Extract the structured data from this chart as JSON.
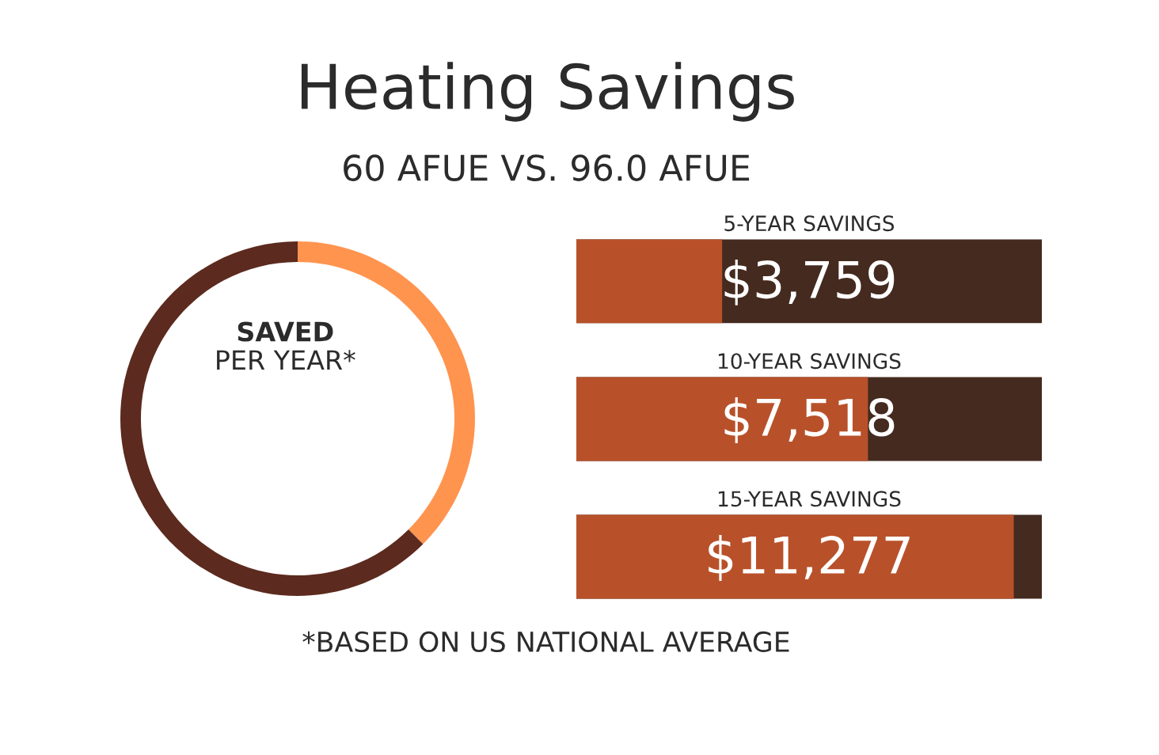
{
  "chart_data": [
    {
      "type": "donut",
      "title": "Heating Savings",
      "subtitle": "60 AFUE VS. 96.0 AFUE",
      "categories": [
        null,
        null
      ],
      "values": [
        37.5,
        62.5
      ],
      "colors": [
        "#ff944f",
        "#5c2a1e"
      ],
      "annotations": [
        "SAVED",
        "PER YEAR*"
      ]
    },
    {
      "type": "bar",
      "orientation": "horizontal",
      "categories": [
        "5-YEAR SAVINGS",
        "10-YEAR SAVINGS",
        "15-YEAR SAVINGS"
      ],
      "values": [
        3759,
        7518,
        11277
      ],
      "color": "#b8512a",
      "value_labels": [
        "$3,759",
        "$7,518",
        "$11,277"
      ],
      "xlim": [
        0,
        12000
      ],
      "bands": [
        {
          "axis": "x",
          "from": 0,
          "to": 12000,
          "color": "#442a1f"
        }
      ],
      "tick_labels": false,
      "annotations": [
        "*BASED ON US NATIONAL AVERAGE"
      ]
    }
  ]
}
